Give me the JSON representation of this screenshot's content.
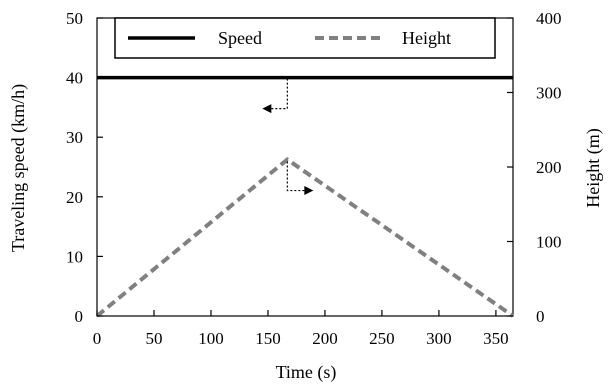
{
  "chart_data": {
    "type": "line",
    "xlabel": "Time (s)",
    "ylabel": "Traveling speed (km/h)",
    "y2label": "Height (m)",
    "xlim": [
      0,
      365
    ],
    "ylim": [
      0,
      50
    ],
    "y2lim": [
      0,
      400
    ],
    "x_ticks": [
      0,
      50,
      100,
      150,
      200,
      250,
      300,
      350
    ],
    "y_ticks": [
      0,
      10,
      20,
      30,
      40,
      50
    ],
    "y2_ticks": [
      0,
      100,
      200,
      300,
      400
    ],
    "grid": false,
    "legend_position": "top",
    "series": [
      {
        "name": "Speed",
        "axis": "left",
        "style": "solid",
        "color": "#000000",
        "x": [
          0,
          365
        ],
        "y": [
          40,
          40
        ]
      },
      {
        "name": "Height",
        "axis": "right",
        "style": "dashed",
        "color": "#808080",
        "x": [
          0,
          167,
          365
        ],
        "y": [
          0,
          210,
          0
        ]
      }
    ],
    "annotations": [
      {
        "type": "arrow",
        "target_series": "Speed",
        "direction": "left",
        "anchor_x": 167,
        "anchor_y": 40
      },
      {
        "type": "arrow",
        "target_series": "Height",
        "direction": "right",
        "anchor_x": 167,
        "anchor_y2": 210
      }
    ]
  }
}
